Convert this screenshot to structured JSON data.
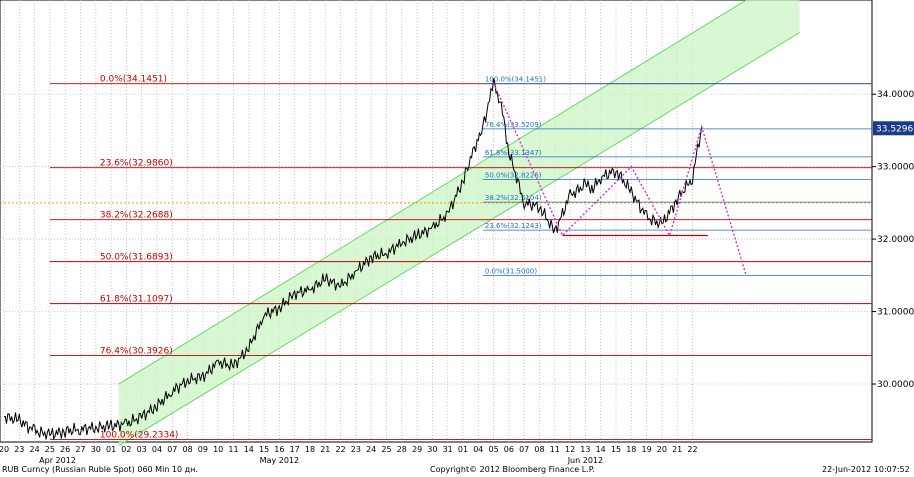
{
  "footer": {
    "left": "RUB Curncy (Russian Ruble Spot) 060 Min 10 дн.",
    "center": "Copyright© 2012 Bloomberg Finance L.P.",
    "right": "22-Jun-2012 10:07:52"
  },
  "colors": {
    "price": "#000000",
    "fib_main": "#c00000",
    "fib_recent": "#1f6fbf",
    "channel_fill": "#c8f5c0",
    "channel_line": "#6ad86a",
    "projection": "#cc33cc",
    "support": "#cc0000",
    "dotted_level": "#ff9900",
    "last_price_box": "#1a3b8c"
  },
  "chart_data": {
    "type": "line",
    "title": "",
    "xlabel": "",
    "ylabel": "",
    "ylim": [
      29.2,
      35.3
    ],
    "y_ticks": [
      "30.0000",
      "31.0000",
      "32.0000",
      "33.0000",
      "34.0000"
    ],
    "last_price": "33.5296",
    "month_labels": [
      "Apr 2012",
      "May 2012",
      "Jun 2012"
    ],
    "x_day_labels": [
      "20",
      "23",
      "24",
      "25",
      "26",
      "27",
      "30",
      "01",
      "02",
      "03",
      "04",
      "07",
      "08",
      "09",
      "10",
      "11",
      "14",
      "15",
      "16",
      "17",
      "18",
      "21",
      "22",
      "23",
      "24",
      "25",
      "28",
      "29",
      "30",
      "31",
      "01",
      "04",
      "05",
      "06",
      "07",
      "08",
      "11",
      "12",
      "13",
      "14",
      "15",
      "18",
      "19",
      "20",
      "21",
      "22"
    ],
    "series": [
      {
        "x": [
          0,
          1,
          2,
          3,
          4,
          5,
          6,
          7,
          8,
          9,
          10,
          11,
          12,
          13,
          14,
          15,
          16,
          17,
          18,
          19,
          20,
          21,
          22,
          23,
          24,
          25,
          26,
          27,
          28,
          29,
          30,
          30.3,
          31,
          31.3,
          32,
          32.5,
          33,
          34,
          35,
          36,
          37,
          38,
          38.5,
          39,
          40,
          41,
          42,
          43,
          44,
          45,
          45.6
        ],
        "y": [
          29.55,
          29.5,
          29.35,
          29.3,
          29.35,
          29.38,
          29.4,
          29.42,
          29.45,
          29.55,
          29.7,
          29.9,
          30.05,
          30.1,
          30.3,
          30.25,
          30.5,
          30.95,
          31.05,
          31.25,
          31.3,
          31.45,
          31.35,
          31.55,
          31.75,
          31.8,
          31.95,
          32.05,
          32.15,
          32.35,
          32.8,
          33.0,
          33.4,
          33.55,
          34.15,
          33.85,
          33.2,
          32.5,
          32.45,
          32.1,
          32.6,
          32.75,
          32.7,
          32.85,
          32.95,
          32.65,
          32.3,
          32.2,
          32.55,
          32.85,
          33.55
        ]
      }
    ],
    "fib_levels_main": [
      {
        "label": "0.0%(34.1451)",
        "value": 34.1451
      },
      {
        "label": "23.6%(32.9860)",
        "value": 32.986
      },
      {
        "label": "38.2%(32.2688)",
        "value": 32.2688
      },
      {
        "label": "50.0%(31.6893)",
        "value": 31.6893
      },
      {
        "label": "61.8%(31.1097)",
        "value": 31.1097
      },
      {
        "label": "76.4%(30.3926)",
        "value": 30.3926
      },
      {
        "label": "100.0%(29.2334)",
        "value": 29.2334
      }
    ],
    "fib_levels_recent": [
      {
        "label": "100.0%(34.1451)",
        "value": 34.1451
      },
      {
        "label": "76.4%(33.5209)",
        "value": 33.5209
      },
      {
        "label": "61.8%(33.1347)",
        "value": 33.1347
      },
      {
        "label": "50.0%(32.8226)",
        "value": 32.8226
      },
      {
        "label": "38.2%(32.5104)",
        "value": 32.5104
      },
      {
        "label": "23.6%(32.1243)",
        "value": 32.1243
      },
      {
        "label": "0.0%(31.5000)",
        "value": 31.5
      }
    ],
    "channel": {
      "x_start": 7.5,
      "x_end": 52,
      "upper_start": 30.0,
      "upper_end": 35.75,
      "lower_start": 29.15,
      "lower_end": 34.85
    },
    "projection_path": {
      "x": [
        32,
        36.5,
        41,
        43.5,
        45.6,
        48.5
      ],
      "y": [
        34.15,
        32.05,
        33.0,
        32.05,
        33.55,
        31.5
      ]
    },
    "support_line": {
      "x_start": 36.5,
      "x_end": 46,
      "value": 32.05
    },
    "dotted_level": 32.5
  }
}
